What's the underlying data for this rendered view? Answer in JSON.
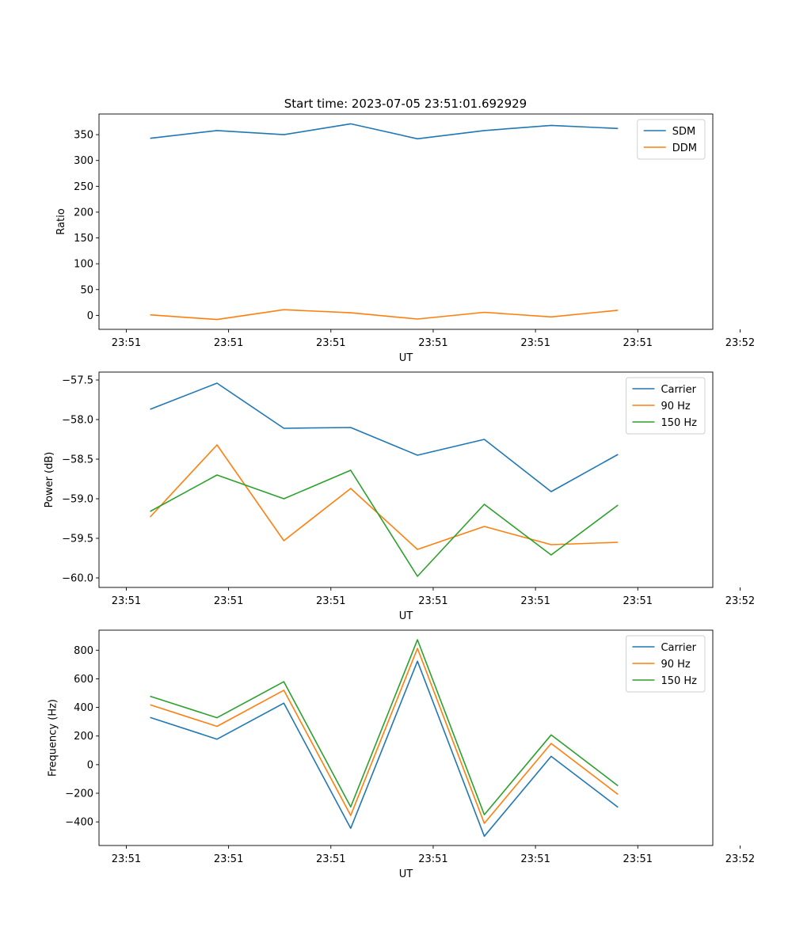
{
  "figure_title": "Start time: 2023-07-05 23:51:01.692929",
  "chart_data": [
    {
      "type": "line",
      "title": "Start time: 2023-07-05 23:51:01.692929",
      "xlabel": "UT",
      "ylabel": "Ratio",
      "xlim": [
        -0.4,
        8.6
      ],
      "ylim": [
        -27,
        390
      ],
      "x": [
        0.35,
        1.33,
        2.31,
        3.29,
        4.27,
        5.25,
        6.23,
        7.21
      ],
      "xticks": [
        0,
        1.5,
        3,
        4.5,
        6,
        7.5,
        9
      ],
      "xtick_labels": [
        "23:51",
        "23:51",
        "23:51",
        "23:51",
        "23:51",
        "23:51",
        "23:52"
      ],
      "yticks": [
        0,
        50,
        100,
        150,
        200,
        250,
        300,
        350
      ],
      "ytick_labels": [
        "0",
        "50",
        "100",
        "150",
        "200",
        "250",
        "300",
        "350"
      ],
      "legend_location": "top-right",
      "series": [
        {
          "name": "SDM",
          "color": "#1f77b4",
          "values": [
            343,
            358,
            350,
            371,
            342,
            358,
            368,
            362
          ]
        },
        {
          "name": "DDM",
          "color": "#ff7f0e",
          "values": [
            1,
            -8,
            11,
            5,
            -7,
            6,
            -3,
            10
          ]
        }
      ]
    },
    {
      "type": "line",
      "title": "",
      "xlabel": "UT",
      "ylabel": "Power (dB)",
      "xlim": [
        -0.4,
        8.6
      ],
      "ylim": [
        -60.12,
        -57.4
      ],
      "x": [
        0.35,
        1.33,
        2.31,
        3.29,
        4.27,
        5.25,
        6.23,
        7.21
      ],
      "xticks": [
        0,
        1.5,
        3,
        4.5,
        6,
        7.5,
        9
      ],
      "xtick_labels": [
        "23:51",
        "23:51",
        "23:51",
        "23:51",
        "23:51",
        "23:51",
        "23:52"
      ],
      "yticks": [
        -60.0,
        -59.5,
        -59.0,
        -58.5,
        -58.0,
        -57.5
      ],
      "ytick_labels": [
        "−60.0",
        "−59.5",
        "−59.0",
        "−58.5",
        "−58.0",
        "−57.5"
      ],
      "legend_location": "top-right",
      "series": [
        {
          "name": "Carrier",
          "color": "#1f77b4",
          "values": [
            -57.87,
            -57.54,
            -58.11,
            -58.1,
            -58.45,
            -58.25,
            -58.91,
            -58.44
          ]
        },
        {
          "name": "90 Hz",
          "color": "#ff7f0e",
          "values": [
            -59.23,
            -58.32,
            -59.53,
            -58.87,
            -59.64,
            -59.35,
            -59.58,
            -59.55
          ]
        },
        {
          "name": "150 Hz",
          "color": "#2ca02c",
          "values": [
            -59.16,
            -58.7,
            -59.0,
            -58.64,
            -59.98,
            -59.07,
            -59.71,
            -59.08
          ]
        }
      ]
    },
    {
      "type": "line",
      "title": "",
      "xlabel": "UT",
      "ylabel": "Frequency (Hz)",
      "xlim": [
        -0.4,
        8.6
      ],
      "ylim": [
        -565,
        940
      ],
      "x": [
        0.35,
        1.33,
        2.31,
        3.29,
        4.27,
        5.25,
        6.23,
        7.21
      ],
      "xticks": [
        0,
        1.5,
        3,
        4.5,
        6,
        7.5,
        9
      ],
      "xtick_labels": [
        "23:51",
        "23:51",
        "23:51",
        "23:51",
        "23:51",
        "23:51",
        "23:52"
      ],
      "yticks": [
        -400,
        -200,
        0,
        200,
        400,
        600,
        800
      ],
      "ytick_labels": [
        "−400",
        "−200",
        "0",
        "200",
        "400",
        "600",
        "800"
      ],
      "legend_location": "top-right",
      "series": [
        {
          "name": "Carrier",
          "color": "#1f77b4",
          "values": [
            330,
            178,
            430,
            -445,
            723,
            -500,
            58,
            -298
          ]
        },
        {
          "name": "90 Hz",
          "color": "#ff7f0e",
          "values": [
            418,
            268,
            520,
            -355,
            813,
            -410,
            148,
            -208
          ]
        },
        {
          "name": "150 Hz",
          "color": "#2ca02c",
          "values": [
            478,
            328,
            580,
            -295,
            873,
            -350,
            208,
            -148
          ]
        }
      ]
    }
  ]
}
